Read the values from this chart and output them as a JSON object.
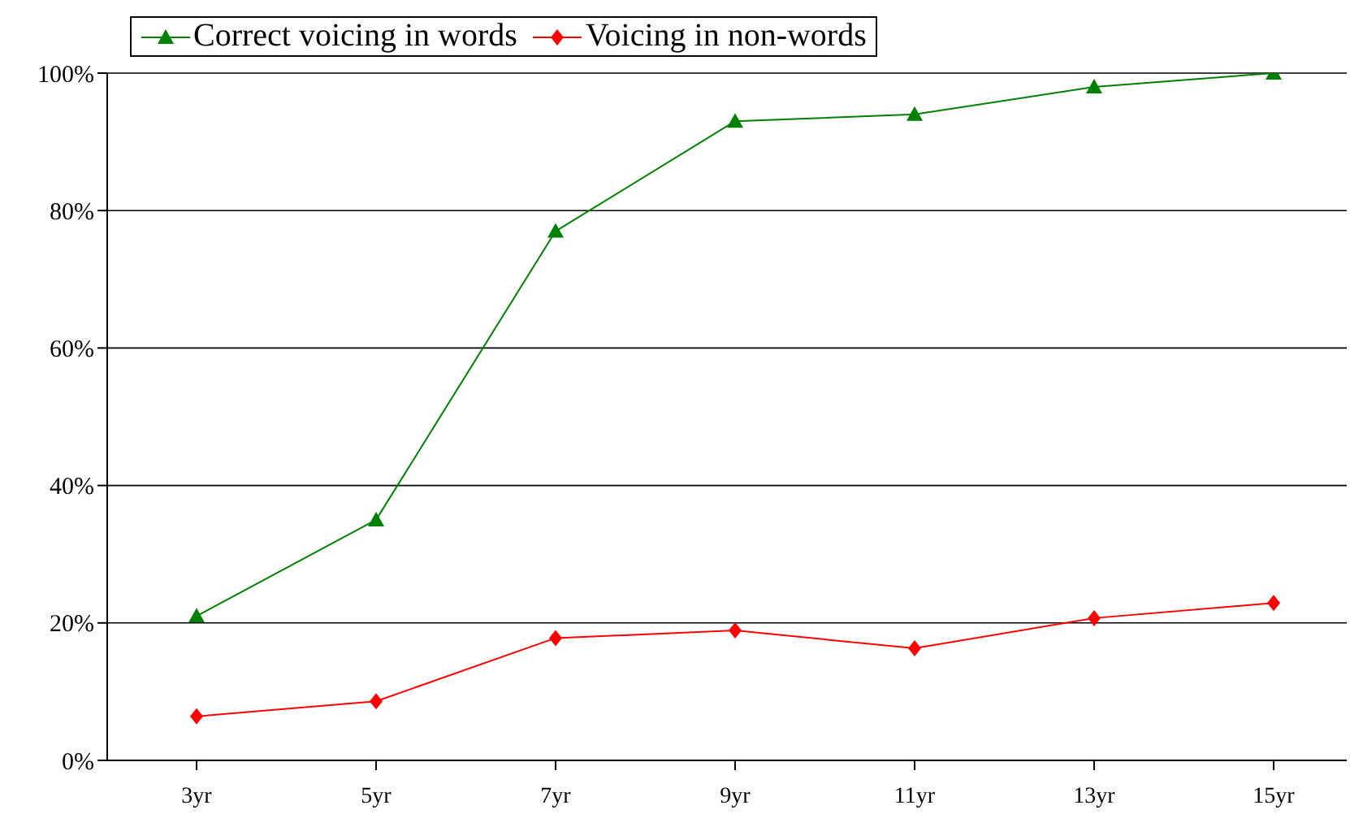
{
  "chart_data": {
    "type": "line",
    "categories": [
      "3yr",
      "5yr",
      "7yr",
      "9yr",
      "11yr",
      "13yr",
      "15yr"
    ],
    "series": [
      {
        "name": "Correct voicing in words",
        "color": "#008000",
        "marker": "triangle",
        "values": [
          21,
          35,
          77,
          93,
          94,
          98,
          100
        ]
      },
      {
        "name": "Voicing in non-words",
        "color": "#ff0000",
        "marker": "diamond",
        "values": [
          6.4,
          8.6,
          17.8,
          18.9,
          16.3,
          20.7,
          22.9
        ]
      }
    ],
    "ylim": [
      0,
      100
    ],
    "yticks": [
      {
        "value": 0,
        "label": "0%"
      },
      {
        "value": 20,
        "label": "20%"
      },
      {
        "value": 40,
        "label": "40%"
      },
      {
        "value": 60,
        "label": "60%"
      },
      {
        "value": 80,
        "label": "80%"
      },
      {
        "value": 100,
        "label": "100%"
      }
    ],
    "grid": "y",
    "legend": "top left"
  }
}
